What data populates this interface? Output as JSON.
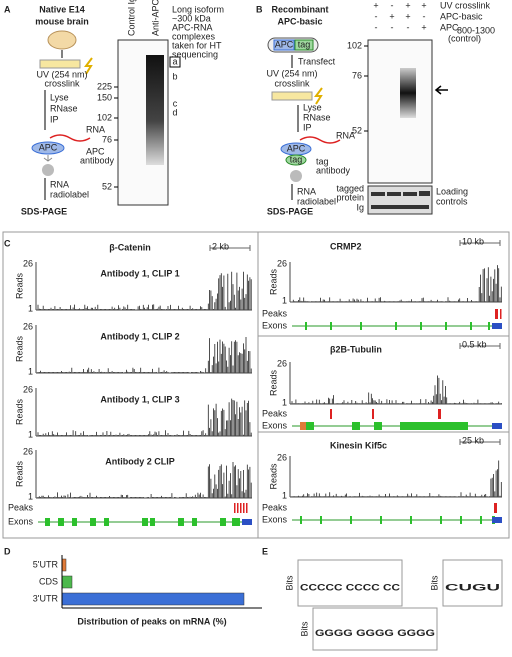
{
  "panel_a": {
    "label": "A",
    "title": [
      "Native E14",
      "mouse brain"
    ],
    "uv": [
      "UV (254 nm)",
      "crosslink"
    ],
    "steps": [
      "Lyse",
      "RNase",
      "IP"
    ],
    "rna": "RNA",
    "apc": "APC",
    "antibody": [
      "APC",
      "antibody"
    ],
    "radiolabel": [
      "RNA",
      "radiolabel"
    ],
    "method": "SDS-PAGE",
    "lanes": [
      "Control IgG",
      "Anti-APC"
    ],
    "markers": [
      225,
      150,
      102,
      76,
      52
    ],
    "bands": [
      "a",
      "b",
      "c",
      "d"
    ],
    "note": [
      "Long isoform",
      "~300 kDa",
      "APC-RNA",
      "complexes",
      "taken for HT",
      "sequencing"
    ]
  },
  "panel_b": {
    "label": "B",
    "title": [
      "Recombinant",
      "APC-basic"
    ],
    "plasmid": [
      "APC",
      "tag"
    ],
    "transfect": "Transfect",
    "uv": [
      "UV (254 nm)",
      "crosslink"
    ],
    "steps": [
      "Lyse",
      "RNase",
      "IP"
    ],
    "rna": "RNA",
    "apc": "APC",
    "tag": "tag",
    "antibody": [
      "tag",
      "antibody"
    ],
    "radiolabel": [
      "RNA",
      "radiolabel"
    ],
    "method": "SDS-PAGE",
    "conditions": [
      {
        "signs": [
          "+",
          "-",
          "+",
          "+"
        ],
        "label": "UV crosslink"
      },
      {
        "signs": [
          "-",
          "+",
          "+",
          "-"
        ],
        "label": "APC-basic"
      },
      {
        "signs": [
          "-",
          "-",
          "-",
          "+"
        ],
        "label": "APC",
        "sub": "800-1300",
        "note": "(control)"
      }
    ],
    "markers": [
      102,
      76,
      52
    ],
    "tagged": [
      "tagged",
      "protein"
    ],
    "ig": "Ig",
    "loading": [
      "Loading",
      "controls"
    ]
  },
  "panel_c": {
    "label": "C",
    "reads": "Reads",
    "ymax": 26,
    "ymin": 1,
    "peaks": "Peaks",
    "exons": "Exons",
    "genes": [
      {
        "name": "β-Catenin",
        "scale": "2 kb",
        "tracks": [
          "Antibody 1, CLIP 1",
          "Antibody 1, CLIP 2",
          "Antibody 1, CLIP 3",
          "Antibody 2 CLIP"
        ]
      },
      {
        "name": "CRMP2",
        "scale": "10 kb"
      },
      {
        "name": "β2B-Tubulin",
        "scale": "0.5 kb"
      },
      {
        "name": "Kinesin Kif5c",
        "scale": "25 kb"
      }
    ]
  },
  "chart_data": {
    "type": "bar",
    "orientation": "horizontal",
    "label": "D",
    "xlabel": "Distribution of peaks on mRNA (%)",
    "categories": [
      "5'UTR",
      "CDS",
      "3'UTR"
    ],
    "values": [
      2,
      5,
      91
    ],
    "colors": [
      "#e07b39",
      "#4cb84c",
      "#3b6fd6"
    ],
    "xlim": [
      0,
      100
    ]
  },
  "panel_e": {
    "label": "E",
    "axis": "Bits",
    "motifs": [
      "CCCCC CCCC CC",
      "CUGU",
      "GGGG GGGG GGGG"
    ],
    "colors": [
      "#2b4fc4",
      "#2b4fc4",
      "#e0a020"
    ]
  }
}
